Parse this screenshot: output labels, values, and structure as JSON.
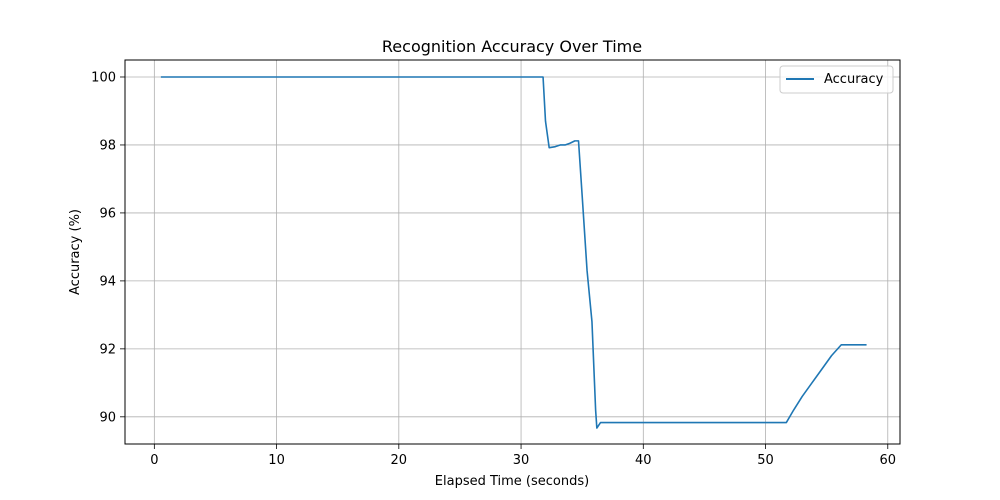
{
  "chart_data": {
    "type": "line",
    "title": "Recognition Accuracy Over Time",
    "xlabel": "Elapsed Time (seconds)",
    "ylabel": "Accuracy (%)",
    "xlim": [
      -2.4,
      61.0
    ],
    "ylim": [
      89.2,
      100.5
    ],
    "xticks": [
      0,
      10,
      20,
      30,
      40,
      50,
      60
    ],
    "yticks": [
      90,
      92,
      94,
      96,
      98,
      100
    ],
    "grid": true,
    "legend_position": "top-right",
    "series": [
      {
        "name": "Accuracy",
        "color": "#1f77b4",
        "x": [
          0.6,
          5,
          10,
          15,
          20,
          25,
          30,
          31.8,
          32.0,
          32.3,
          32.8,
          33.2,
          33.6,
          34.0,
          34.4,
          34.7,
          35.0,
          35.4,
          35.8,
          36.1,
          36.2,
          36.5,
          40,
          45,
          50,
          51.7,
          52.3,
          53.0,
          53.8,
          54.6,
          55.4,
          56.2,
          57.0,
          58.2
        ],
        "y": [
          100,
          100,
          100,
          100,
          100,
          100,
          100,
          100,
          98.7,
          97.92,
          97.95,
          98.0,
          98.0,
          98.05,
          98.12,
          98.12,
          96.5,
          94.3,
          92.8,
          90.2,
          89.67,
          89.83,
          89.83,
          89.83,
          89.83,
          89.83,
          90.2,
          90.6,
          91.0,
          91.4,
          91.8,
          92.12,
          92.12,
          92.12
        ]
      }
    ]
  }
}
